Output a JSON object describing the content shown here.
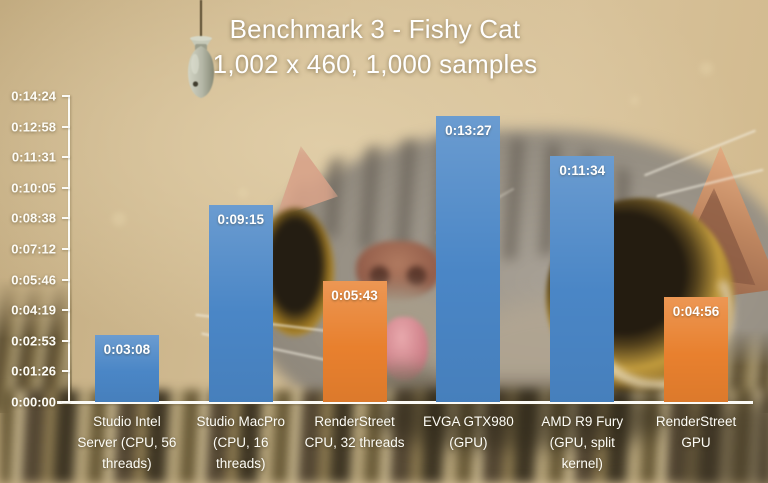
{
  "slide": {
    "title": "Benchmark 3 - Fishy Cat",
    "subtitle": "1,002 x 460, 1,000 samples"
  },
  "chart_data": {
    "type": "bar",
    "title": "Benchmark 3 - Fishy Cat",
    "subtitle": "1,002 x 460, 1,000 samples",
    "categories": [
      "Studio Intel Server (CPU, 56 threads)",
      "Studio MacPro (CPU, 16 threads)",
      "RenderStreet CPU, 32 threads",
      "EVGA GTX980 (GPU)",
      "AMD R9 Fury (GPU, split kernel)",
      "RenderStreet GPU"
    ],
    "values_hms": [
      "0:03:08",
      "0:09:15",
      "0:05:43",
      "0:13:27",
      "0:11:34",
      "0:04:56"
    ],
    "values_seconds": [
      188,
      555,
      343,
      807,
      694,
      296
    ],
    "bar_colors": [
      "#4a86c6",
      "#4a86c6",
      "#e8802e",
      "#4a86c6",
      "#4a86c6",
      "#e8802e"
    ],
    "data_label_position": "inside-end",
    "data_label_color": "#ffffff",
    "y_axis": {
      "ticks": [
        "0:14:24",
        "0:12:58",
        "0:11:31",
        "0:10:05",
        "0:08:38",
        "0:07:12",
        "0:05:46",
        "0:04:19",
        "0:02:53",
        "0:01:26",
        "0:00:00"
      ],
      "max_seconds": 864,
      "min_seconds": 0
    },
    "xlabel": "",
    "ylabel": "",
    "legend": "none",
    "grid": false
  },
  "colors": {
    "bar_blue": "#4a86c6",
    "bar_orange": "#e8802e",
    "axis_white": "#fbfaf5",
    "text_white": "#ffffff",
    "background_tan": "#d3bd93"
  },
  "background_scene": {
    "objects": [
      "fishing-lure",
      "cat-face",
      "grass"
    ]
  }
}
